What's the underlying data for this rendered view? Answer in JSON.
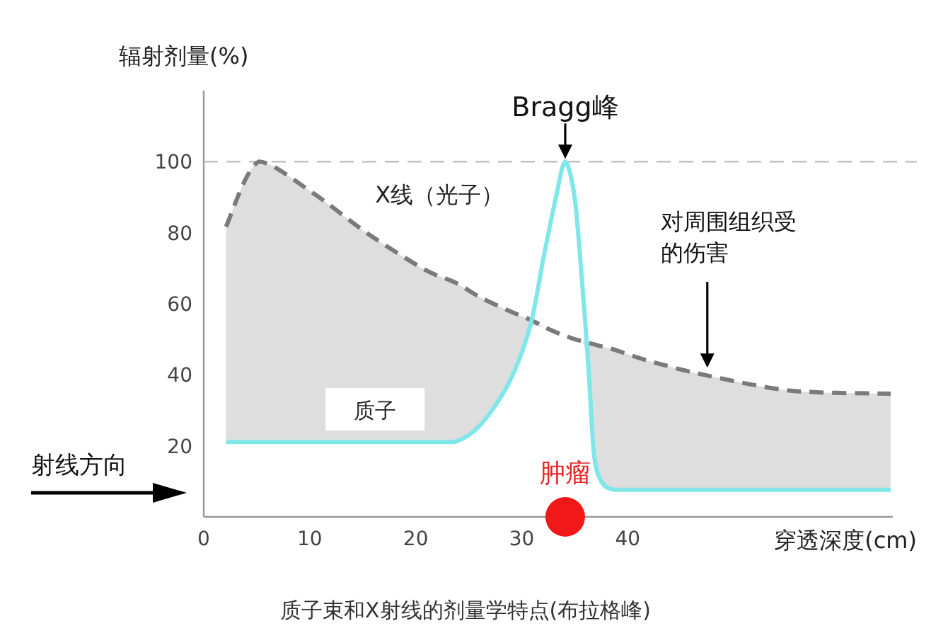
{
  "chart_data": {
    "type": "line",
    "ylabel": "辐射剂量(%)",
    "xlabel": "穿透深度(cm)",
    "xlim": [
      0,
      65
    ],
    "ylim": [
      0,
      120
    ],
    "xticks": [
      0,
      10,
      20,
      30,
      40
    ],
    "yticks": [
      20,
      40,
      60,
      80,
      100
    ],
    "x": [
      2.1,
      5.2,
      10.1,
      15.5,
      20.8,
      23.7,
      26.1,
      28.8,
      30.8,
      32.1,
      33.2,
      34.1,
      35,
      35.7,
      36.3,
      36.8,
      37.5,
      38.8,
      42.1,
      47.5,
      55.5,
      64.8
    ],
    "series": [
      {
        "name": "X线（光子）",
        "type": "line",
        "color": "#7a7a7a",
        "line_style": "dashed",
        "values": [
          81.7,
          100,
          91.6,
          79.7,
          69.7,
          66,
          61.8,
          58,
          55.5,
          53.5,
          52,
          51,
          50,
          49.5,
          49,
          48.6,
          48,
          47,
          43.8,
          39.8,
          35.5,
          34.7
        ],
        "lower": [
          21.1,
          21.1,
          21.1,
          21.1,
          21.1,
          21.1,
          25.9,
          37.8,
          53.8,
          53.5,
          52,
          51,
          50,
          49.5,
          41.8,
          17.9,
          10,
          7.6,
          7.6,
          7.6,
          7.6,
          7.6
        ],
        "upper": [
          81.7,
          100,
          91.6,
          79.7,
          69.7,
          66,
          61.8,
          58,
          55.5,
          53.5,
          52,
          51,
          50,
          49.5,
          49,
          48.6,
          48,
          47,
          43.8,
          39.8,
          35.5,
          34.7
        ]
      },
      {
        "name": "质子",
        "type": "line",
        "color": "#7fe6ea",
        "line_style": "solid",
        "values": [
          21.1,
          21.1,
          21.1,
          21.1,
          21.1,
          21.1,
          25.9,
          37.8,
          53.8,
          73.7,
          89.6,
          100,
          89.6,
          65.7,
          41.8,
          17.9,
          10,
          7.6,
          7.6,
          7.6,
          7.6,
          7.6
        ]
      }
    ],
    "ref_lines": [
      {
        "axis": "y",
        "value": 100,
        "color": "#bbbbbb",
        "line_style": "dashed"
      }
    ],
    "annotations": [
      {
        "text": "Bragg峰",
        "x": 34.1,
        "y": 100
      },
      {
        "text": "对周围组织受的伤害",
        "x": 47.5,
        "y": 42
      },
      "肿瘤",
      "射线方向",
      "质子束和X射线的剂量学特点(布拉格峰)"
    ]
  }
}
